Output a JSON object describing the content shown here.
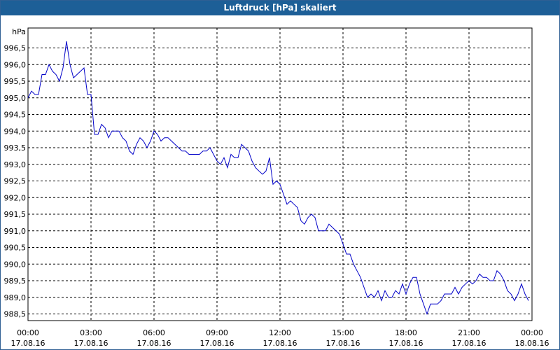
{
  "chart_data": {
    "type": "line",
    "title": "Luftdruck [hPa] skaliert",
    "unit_label": "hPa",
    "ylim": [
      988.3,
      997.1
    ],
    "y_ticks": [
      996.5,
      996.0,
      995.5,
      995.0,
      994.5,
      994.0,
      993.5,
      993.0,
      992.5,
      992.0,
      991.5,
      991.0,
      990.5,
      990.0,
      989.5,
      989.0,
      988.5
    ],
    "y_tick_labels": [
      "996,5",
      "996,0",
      "995,5",
      "995,0",
      "994,5",
      "994,0",
      "993,5",
      "993,0",
      "992,5",
      "992,0",
      "991,5",
      "991,0",
      "990,5",
      "990,0",
      "989,5",
      "989,0",
      "988,5"
    ],
    "x_ticks": [
      "2016-08-17 00:00",
      "2016-08-17 03:00",
      "2016-08-17 06:00",
      "2016-08-17 09:00",
      "2016-08-17 12:00",
      "2016-08-17 15:00",
      "2016-08-17 18:00",
      "2016-08-17 21:00",
      "2016-08-18 00:00"
    ],
    "x_tick_labels": [
      {
        "time": "00:00",
        "date": "17.08.16"
      },
      {
        "time": "03:00",
        "date": "17.08.16"
      },
      {
        "time": "06:00",
        "date": "17.08.16"
      },
      {
        "time": "09:00",
        "date": "17.08.16"
      },
      {
        "time": "12:00",
        "date": "17.08.16"
      },
      {
        "time": "15:00",
        "date": "17.08.16"
      },
      {
        "time": "18:00",
        "date": "17.08.16"
      },
      {
        "time": "21:00",
        "date": "17.08.16"
      },
      {
        "time": "00:00",
        "date": "18.08.16"
      }
    ],
    "xlim": [
      "2016-08-17 00:00",
      "2016-08-18 00:00"
    ],
    "grid": true,
    "line_color": "#0000c8",
    "series": [
      {
        "x": [
          "2016-08-17 00:00",
          "2016-08-17 00:10",
          "2016-08-17 00:20",
          "2016-08-17 00:30",
          "2016-08-17 00:40",
          "2016-08-17 00:50",
          "2016-08-17 01:00",
          "2016-08-17 01:10",
          "2016-08-17 01:20",
          "2016-08-17 01:30",
          "2016-08-17 01:40",
          "2016-08-17 01:50",
          "2016-08-17 02:00",
          "2016-08-17 02:10",
          "2016-08-17 02:20",
          "2016-08-17 02:30",
          "2016-08-17 02:40",
          "2016-08-17 02:50",
          "2016-08-17 03:00",
          "2016-08-17 03:10",
          "2016-08-17 03:20",
          "2016-08-17 03:30",
          "2016-08-17 03:40",
          "2016-08-17 03:50",
          "2016-08-17 04:00",
          "2016-08-17 04:10",
          "2016-08-17 04:20",
          "2016-08-17 04:30",
          "2016-08-17 04:40",
          "2016-08-17 04:50",
          "2016-08-17 05:00",
          "2016-08-17 05:10",
          "2016-08-17 05:20",
          "2016-08-17 05:30",
          "2016-08-17 05:40",
          "2016-08-17 05:50",
          "2016-08-17 06:00",
          "2016-08-17 06:10",
          "2016-08-17 06:20",
          "2016-08-17 06:30",
          "2016-08-17 06:40",
          "2016-08-17 06:50",
          "2016-08-17 07:00",
          "2016-08-17 07:10",
          "2016-08-17 07:20",
          "2016-08-17 07:30",
          "2016-08-17 07:40",
          "2016-08-17 07:50",
          "2016-08-17 08:00",
          "2016-08-17 08:10",
          "2016-08-17 08:20",
          "2016-08-17 08:30",
          "2016-08-17 08:40",
          "2016-08-17 08:50",
          "2016-08-17 09:00",
          "2016-08-17 09:10",
          "2016-08-17 09:20",
          "2016-08-17 09:30",
          "2016-08-17 09:40",
          "2016-08-17 09:50",
          "2016-08-17 10:00",
          "2016-08-17 10:10",
          "2016-08-17 10:20",
          "2016-08-17 10:30",
          "2016-08-17 10:40",
          "2016-08-17 10:50",
          "2016-08-17 11:00",
          "2016-08-17 11:10",
          "2016-08-17 11:20",
          "2016-08-17 11:30",
          "2016-08-17 11:40",
          "2016-08-17 11:50",
          "2016-08-17 12:00",
          "2016-08-17 12:10",
          "2016-08-17 12:20",
          "2016-08-17 12:30",
          "2016-08-17 12:40",
          "2016-08-17 12:50",
          "2016-08-17 13:00",
          "2016-08-17 13:10",
          "2016-08-17 13:20",
          "2016-08-17 13:30",
          "2016-08-17 13:40",
          "2016-08-17 13:50",
          "2016-08-17 14:00",
          "2016-08-17 14:10",
          "2016-08-17 14:20",
          "2016-08-17 14:30",
          "2016-08-17 14:40",
          "2016-08-17 14:50",
          "2016-08-17 15:00",
          "2016-08-17 15:10",
          "2016-08-17 15:20",
          "2016-08-17 15:30",
          "2016-08-17 15:40",
          "2016-08-17 15:50",
          "2016-08-17 16:00",
          "2016-08-17 16:10",
          "2016-08-17 16:20",
          "2016-08-17 16:30",
          "2016-08-17 16:40",
          "2016-08-17 16:50",
          "2016-08-17 17:00",
          "2016-08-17 17:10",
          "2016-08-17 17:20",
          "2016-08-17 17:30",
          "2016-08-17 17:40",
          "2016-08-17 17:50",
          "2016-08-17 18:00",
          "2016-08-17 18:10",
          "2016-08-17 18:20",
          "2016-08-17 18:30",
          "2016-08-17 18:40",
          "2016-08-17 18:50",
          "2016-08-17 19:00",
          "2016-08-17 19:10",
          "2016-08-17 19:20",
          "2016-08-17 19:30",
          "2016-08-17 19:40",
          "2016-08-17 19:50",
          "2016-08-17 20:00",
          "2016-08-17 20:10",
          "2016-08-17 20:20",
          "2016-08-17 20:30",
          "2016-08-17 20:40",
          "2016-08-17 20:50",
          "2016-08-17 21:00",
          "2016-08-17 21:10",
          "2016-08-17 21:20",
          "2016-08-17 21:30",
          "2016-08-17 21:40",
          "2016-08-17 21:50",
          "2016-08-17 22:00",
          "2016-08-17 22:10",
          "2016-08-17 22:20",
          "2016-08-17 22:30",
          "2016-08-17 22:40",
          "2016-08-17 22:50",
          "2016-08-17 23:00",
          "2016-08-17 23:10",
          "2016-08-17 23:20",
          "2016-08-17 23:30",
          "2016-08-17 23:40",
          "2016-08-17 23:50"
        ],
        "y": [
          995.0,
          995.2,
          995.1,
          995.1,
          995.7,
          995.7,
          996.0,
          995.8,
          995.7,
          995.5,
          995.9,
          996.7,
          996.0,
          995.6,
          995.7,
          995.8,
          995.9,
          995.1,
          995.1,
          993.9,
          993.9,
          994.2,
          994.1,
          993.8,
          994.0,
          994.0,
          994.0,
          993.8,
          993.7,
          993.4,
          993.3,
          993.6,
          993.8,
          993.7,
          993.5,
          993.7,
          994.0,
          993.9,
          993.7,
          993.8,
          993.8,
          993.7,
          993.6,
          993.5,
          993.4,
          993.4,
          993.3,
          993.3,
          993.3,
          993.3,
          993.4,
          993.4,
          993.5,
          993.3,
          993.1,
          993.0,
          993.2,
          992.9,
          993.3,
          993.2,
          993.2,
          993.6,
          993.5,
          993.4,
          993.1,
          992.9,
          992.8,
          992.7,
          992.8,
          993.2,
          992.4,
          992.5,
          992.4,
          992.1,
          991.8,
          991.9,
          991.8,
          991.7,
          991.3,
          991.2,
          991.4,
          991.5,
          991.4,
          991.0,
          991.0,
          991.0,
          991.2,
          991.1,
          991.0,
          990.9,
          990.6,
          990.3,
          990.3,
          990.0,
          989.8,
          989.6,
          989.3,
          989.0,
          989.1,
          989.0,
          989.2,
          988.9,
          989.2,
          989.0,
          989.0,
          989.2,
          989.1,
          989.4,
          989.1,
          989.4,
          989.6,
          989.6,
          989.1,
          988.8,
          988.5,
          988.8,
          988.8,
          988.8,
          988.9,
          989.1,
          989.1,
          989.1,
          989.3,
          989.1,
          989.3,
          989.4,
          989.5,
          989.4,
          989.5,
          989.7,
          989.6,
          989.6,
          989.5,
          989.5,
          989.8,
          989.7,
          989.5,
          989.2,
          989.1,
          988.9,
          989.1,
          989.4,
          989.1,
          988.9
        ]
      }
    ]
  }
}
